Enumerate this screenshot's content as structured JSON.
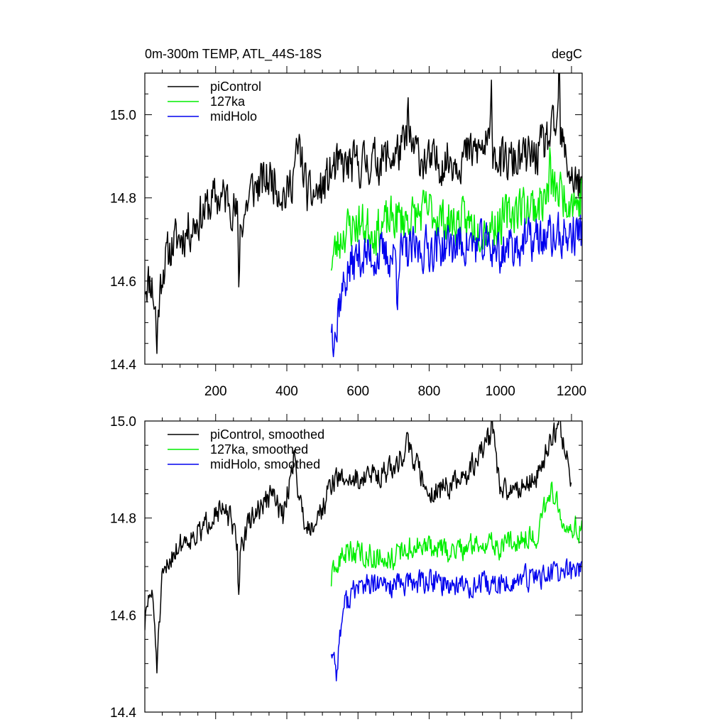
{
  "chart_data": [
    {
      "type": "line",
      "title": "0m-300m TEMP, ATL_44S-18S",
      "units": "degC",
      "xlabel": "",
      "ylabel": "",
      "xlim": [
        1,
        1230
      ],
      "ylim": [
        14.4,
        15.1
      ],
      "xticks": [
        200,
        400,
        600,
        800,
        1000,
        1200
      ],
      "xtick_labels": [
        "200",
        "400",
        "600",
        "800",
        "1000",
        "1200"
      ],
      "yticks": [
        14.4,
        14.6,
        14.8,
        15.0
      ],
      "ytick_labels": [
        "14.4",
        "14.6",
        "14.8",
        "15.0"
      ],
      "legend_position": "top-left",
      "series": [
        {
          "name": "piControl",
          "color": "#000000",
          "x_start": 1,
          "x_end": 1230,
          "noise": 0.075,
          "seed": 11,
          "anchors": [
            [
              1,
              14.6
            ],
            [
              20,
              14.6
            ],
            [
              35,
              14.5
            ],
            [
              50,
              14.63
            ],
            [
              80,
              14.69
            ],
            [
              120,
              14.72
            ],
            [
              160,
              14.76
            ],
            [
              200,
              14.8
            ],
            [
              240,
              14.8
            ],
            [
              270,
              14.73
            ],
            [
              300,
              14.82
            ],
            [
              360,
              14.85
            ],
            [
              400,
              14.8
            ],
            [
              435,
              14.92
            ],
            [
              460,
              14.8
            ],
            [
              500,
              14.82
            ],
            [
              530,
              14.87
            ],
            [
              600,
              14.88
            ],
            [
              700,
              14.9
            ],
            [
              740,
              14.93
            ],
            [
              800,
              14.88
            ],
            [
              900,
              14.9
            ],
            [
              980,
              14.93
            ],
            [
              1000,
              14.88
            ],
            [
              1100,
              14.9
            ],
            [
              1160,
              14.97
            ],
            [
              1200,
              14.85
            ],
            [
              1230,
              14.82
            ]
          ],
          "spikes": [
            [
              35,
              -0.07
            ],
            [
              265,
              -0.16
            ],
            [
              740,
              0.11
            ],
            [
              975,
              0.13
            ],
            [
              1165,
              0.18
            ]
          ]
        },
        {
          "name": "127ka",
          "color": "#00ee00",
          "x_start": 525,
          "x_end": 1230,
          "noise": 0.075,
          "seed": 23,
          "anchors": [
            [
              525,
              14.65
            ],
            [
              560,
              14.72
            ],
            [
              600,
              14.74
            ],
            [
              650,
              14.72
            ],
            [
              700,
              14.75
            ],
            [
              750,
              14.75
            ],
            [
              800,
              14.77
            ],
            [
              850,
              14.74
            ],
            [
              900,
              14.74
            ],
            [
              950,
              14.73
            ],
            [
              1000,
              14.74
            ],
            [
              1050,
              14.78
            ],
            [
              1100,
              14.78
            ],
            [
              1150,
              14.82
            ],
            [
              1200,
              14.8
            ],
            [
              1230,
              14.78
            ]
          ],
          "spikes": [
            [
              1140,
              0.1
            ],
            [
              1230,
              0.12
            ]
          ]
        },
        {
          "name": "midHolo",
          "color": "#0000ee",
          "x_start": 525,
          "x_end": 1230,
          "noise": 0.075,
          "seed": 37,
          "anchors": [
            [
              525,
              14.5
            ],
            [
              540,
              14.53
            ],
            [
              570,
              14.62
            ],
            [
              600,
              14.66
            ],
            [
              700,
              14.66
            ],
            [
              800,
              14.68
            ],
            [
              900,
              14.69
            ],
            [
              1000,
              14.68
            ],
            [
              1100,
              14.7
            ],
            [
              1200,
              14.71
            ],
            [
              1230,
              14.72
            ]
          ],
          "spikes": [
            [
              530,
              -0.05
            ],
            [
              540,
              -0.08
            ],
            [
              710,
              -0.1
            ],
            [
              1000,
              -0.08
            ]
          ]
        }
      ]
    },
    {
      "type": "line",
      "title": "",
      "xlim": [
        1,
        1230
      ],
      "ylim": [
        14.4,
        15.0
      ],
      "xticks": [
        200,
        400,
        600,
        800,
        1000,
        1200
      ],
      "yticks": [
        14.4,
        14.6,
        14.8,
        15.0
      ],
      "ytick_labels": [
        "14.4",
        "14.6",
        "14.8",
        "15.0"
      ],
      "legend_position": "top-left",
      "series": [
        {
          "name": "piControl, smoothed",
          "color": "#000000",
          "x_start": 1,
          "x_end": 1200,
          "noise": 0.035,
          "seed": 51,
          "anchors": [
            [
              1,
              14.58
            ],
            [
              15,
              14.65
            ],
            [
              25,
              14.62
            ],
            [
              35,
              14.5
            ],
            [
              50,
              14.67
            ],
            [
              80,
              14.73
            ],
            [
              120,
              14.76
            ],
            [
              160,
              14.77
            ],
            [
              200,
              14.82
            ],
            [
              240,
              14.8
            ],
            [
              265,
              14.73
            ],
            [
              300,
              14.8
            ],
            [
              360,
              14.85
            ],
            [
              390,
              14.8
            ],
            [
              420,
              14.93
            ],
            [
              440,
              14.82
            ],
            [
              460,
              14.78
            ],
            [
              500,
              14.82
            ],
            [
              530,
              14.88
            ],
            [
              600,
              14.88
            ],
            [
              700,
              14.9
            ],
            [
              740,
              14.95
            ],
            [
              800,
              14.85
            ],
            [
              900,
              14.88
            ],
            [
              980,
              14.98
            ],
            [
              1000,
              14.85
            ],
            [
              1100,
              14.88
            ],
            [
              1165,
              15.0
            ],
            [
              1200,
              14.88
            ]
          ],
          "spikes": [
            [
              265,
              -0.1
            ],
            [
              740,
              0.06
            ],
            [
              975,
              0.05
            ],
            [
              1165,
              0.03
            ]
          ]
        },
        {
          "name": "127ka, smoothed",
          "color": "#00ee00",
          "x_start": 525,
          "x_end": 1230,
          "noise": 0.035,
          "seed": 63,
          "anchors": [
            [
              525,
              14.67
            ],
            [
              560,
              14.73
            ],
            [
              600,
              14.73
            ],
            [
              650,
              14.72
            ],
            [
              700,
              14.72
            ],
            [
              750,
              14.74
            ],
            [
              800,
              14.74
            ],
            [
              850,
              14.73
            ],
            [
              900,
              14.74
            ],
            [
              950,
              14.75
            ],
            [
              1000,
              14.74
            ],
            [
              1050,
              14.76
            ],
            [
              1100,
              14.76
            ],
            [
              1140,
              14.86
            ],
            [
              1180,
              14.8
            ],
            [
              1230,
              14.77
            ]
          ],
          "spikes": []
        },
        {
          "name": "midHolo, smoothed",
          "color": "#0000ee",
          "x_start": 525,
          "x_end": 1230,
          "noise": 0.035,
          "seed": 77,
          "anchors": [
            [
              525,
              14.53
            ],
            [
              540,
              14.5
            ],
            [
              560,
              14.62
            ],
            [
              600,
              14.66
            ],
            [
              700,
              14.66
            ],
            [
              800,
              14.67
            ],
            [
              900,
              14.66
            ],
            [
              1000,
              14.66
            ],
            [
              1100,
              14.68
            ],
            [
              1200,
              14.69
            ],
            [
              1230,
              14.7
            ]
          ],
          "spikes": [
            [
              540,
              -0.03
            ]
          ]
        }
      ]
    }
  ]
}
